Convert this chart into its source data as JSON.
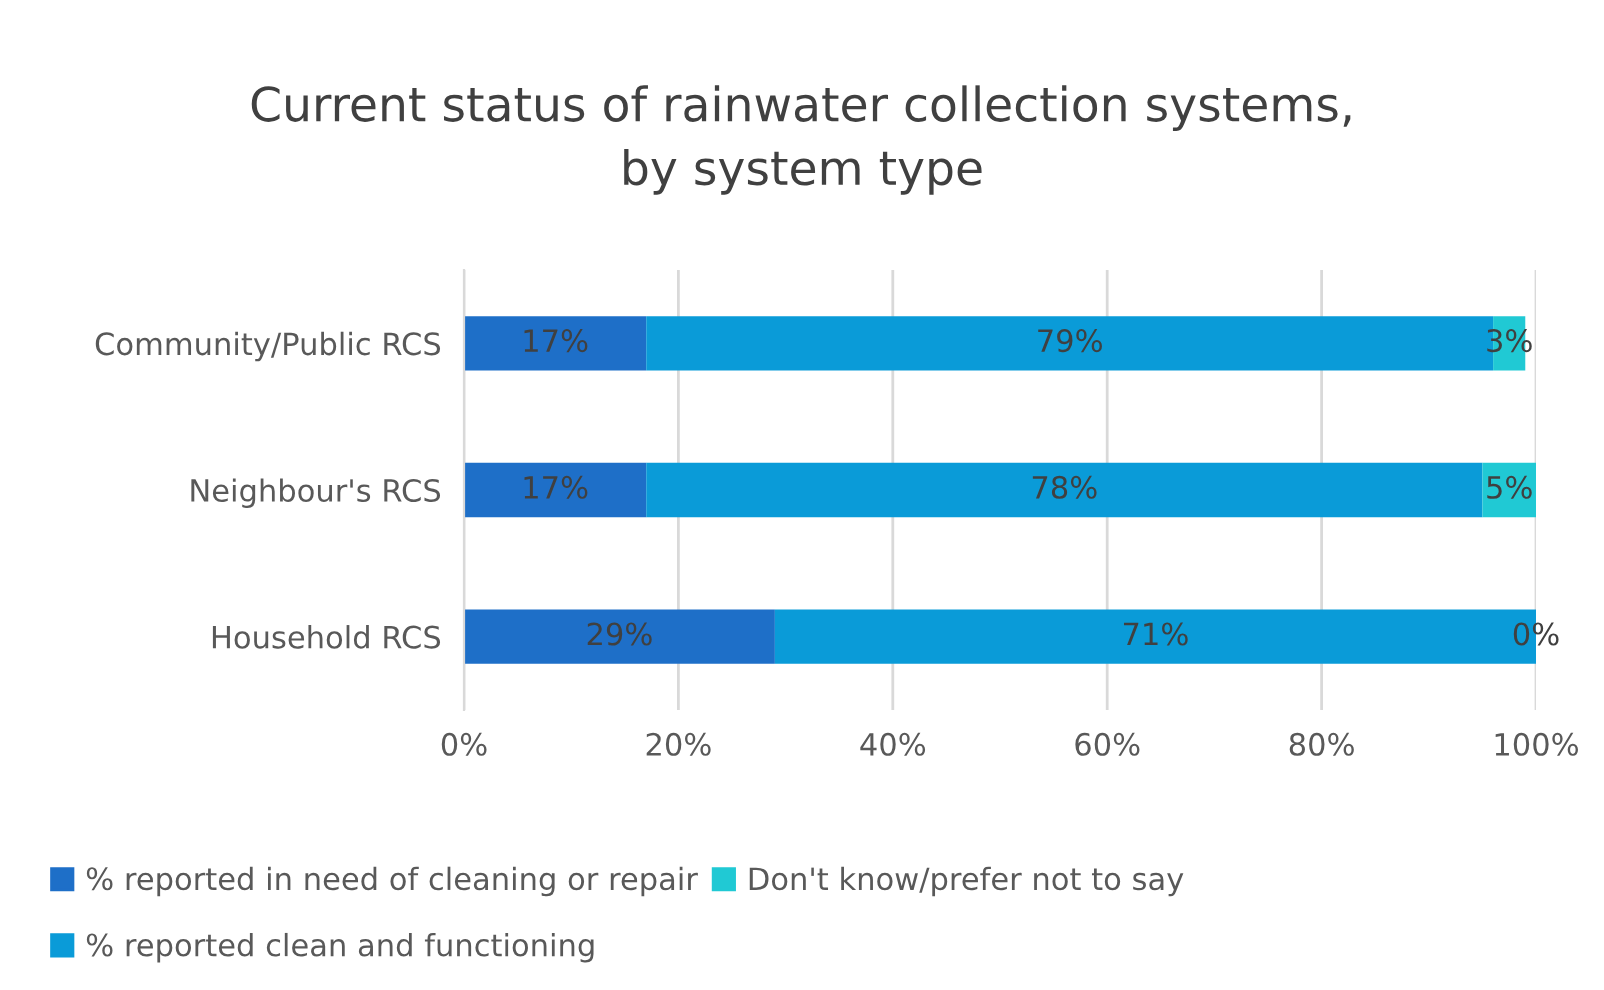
{
  "chart_data": {
    "type": "bar",
    "orientation": "horizontal",
    "stacked": true,
    "title": "Current status of rainwater collection systems,\nby system type",
    "categories": [
      "Community/Public RCS",
      "Neighbour's RCS",
      "Household RCS"
    ],
    "series": [
      {
        "name": "% reported in need of cleaning or repair",
        "color": "#1e6fc8",
        "values": [
          17,
          17,
          29
        ],
        "value_labels": [
          "17%",
          "17%",
          "29%"
        ]
      },
      {
        "name": "% reported clean and functioning",
        "color": "#0a9bd8",
        "values": [
          79,
          78,
          71
        ],
        "value_labels": [
          "79%",
          "78%",
          "71%"
        ]
      },
      {
        "name": "Don't know/prefer not to say",
        "color": "#20c9d4",
        "values": [
          3,
          5,
          0
        ],
        "value_labels": [
          "3%",
          "5%",
          "0%"
        ]
      }
    ],
    "xlim": [
      0,
      100
    ],
    "xticks": [
      {
        "value": 0,
        "label": "0%"
      },
      {
        "value": 20,
        "label": "20%"
      },
      {
        "value": 40,
        "label": "40%"
      },
      {
        "value": 60,
        "label": "60%"
      },
      {
        "value": 80,
        "label": "80%"
      },
      {
        "value": 100,
        "label": "100%"
      }
    ],
    "grid": "x",
    "legend": "bottom"
  }
}
